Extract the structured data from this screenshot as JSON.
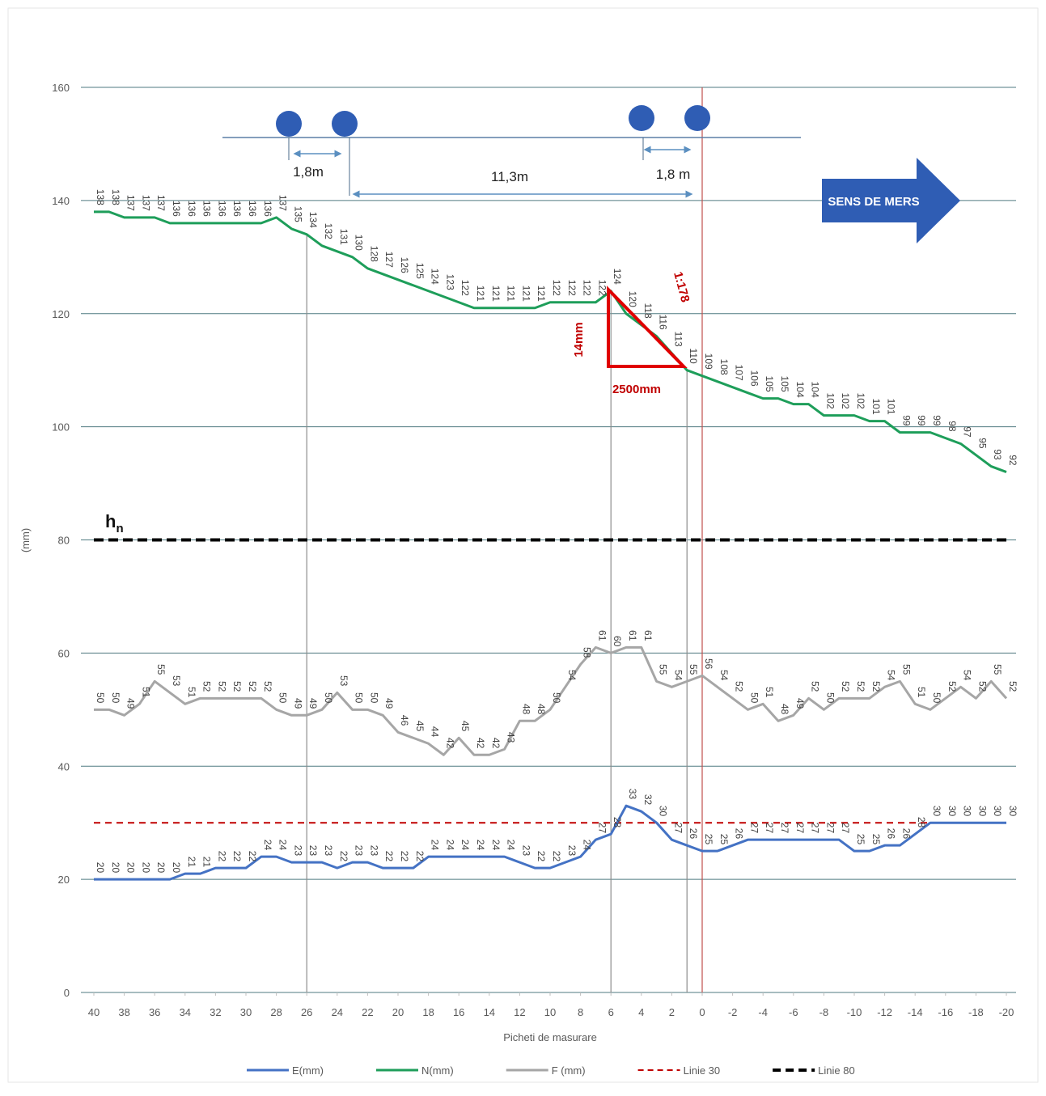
{
  "chart_data": {
    "type": "line",
    "y_label": "(mm)",
    "x_label": "Picheti de masurare",
    "x": [
      40,
      39,
      38,
      37,
      36,
      35,
      34,
      33,
      32,
      31,
      30,
      29,
      28,
      27,
      26,
      25,
      24,
      23,
      22,
      21,
      20,
      19,
      18,
      17,
      16,
      15,
      14,
      13,
      12,
      11,
      10,
      9,
      8,
      7,
      6,
      5,
      4,
      3,
      2,
      1,
      0,
      -1,
      -2,
      -3,
      -4,
      -5,
      -6,
      -7,
      -8,
      -9,
      -10,
      -11,
      -12,
      -13,
      -14,
      -15,
      -16,
      -17,
      -18,
      -19,
      -20
    ],
    "xlim": [
      40,
      -20
    ],
    "xticks": [
      40,
      38,
      36,
      34,
      32,
      30,
      28,
      26,
      24,
      22,
      20,
      18,
      16,
      14,
      12,
      10,
      8,
      6,
      4,
      2,
      0,
      -2,
      -4,
      -6,
      -8,
      -10,
      -12,
      -14,
      -16,
      -18,
      -20
    ],
    "ylim": [
      0,
      160
    ],
    "yticks": [
      0,
      20,
      40,
      60,
      80,
      100,
      120,
      140,
      160
    ],
    "grid": true,
    "series": [
      {
        "name": "E(mm)",
        "color": "#4472c4",
        "values": [
          20,
          20,
          20,
          20,
          20,
          20,
          21,
          21,
          22,
          22,
          22,
          24,
          24,
          23,
          23,
          23,
          22,
          23,
          23,
          22,
          22,
          22,
          24,
          24,
          24,
          24,
          24,
          24,
          23,
          22,
          22,
          23,
          24,
          27,
          28,
          33,
          32,
          30,
          27,
          26,
          25,
          25,
          26,
          27,
          27,
          27,
          27,
          27,
          27,
          27,
          25,
          25,
          26,
          26,
          28,
          30,
          30,
          30,
          30,
          30,
          30
        ]
      },
      {
        "name": "N(mm)",
        "color": "#1e9e5a",
        "values": [
          138,
          138,
          137,
          137,
          137,
          136,
          136,
          136,
          136,
          136,
          136,
          136,
          137,
          135,
          134,
          132,
          131,
          130,
          128,
          127,
          126,
          125,
          124,
          123,
          122,
          121,
          121,
          121,
          121,
          121,
          122,
          122,
          122,
          122,
          124,
          120,
          118,
          116,
          113,
          110,
          109,
          108,
          107,
          106,
          105,
          105,
          104,
          104,
          102,
          102,
          102,
          101,
          101,
          99,
          99,
          99,
          98,
          97,
          95,
          93,
          92
        ]
      },
      {
        "name": "F (mm)",
        "color": "#a6a6a6",
        "values": [
          50,
          50,
          49,
          51,
          55,
          53,
          51,
          52,
          52,
          52,
          52,
          52,
          50,
          49,
          49,
          50,
          53,
          50,
          50,
          49,
          46,
          45,
          44,
          42,
          45,
          42,
          42,
          43,
          48,
          48,
          50,
          54,
          58,
          61,
          60,
          61,
          61,
          55,
          54,
          55,
          56,
          54,
          52,
          50,
          51,
          48,
          49,
          52,
          50,
          52,
          52,
          52,
          54,
          55,
          51,
          50,
          52,
          54,
          52,
          55,
          52
        ]
      }
    ],
    "reference_lines": [
      {
        "name": "Linie 30",
        "value": 30,
        "color": "#c00000"
      },
      {
        "name": "Linie 80",
        "value": 80,
        "color": "#000000"
      }
    ],
    "vlines": [
      {
        "x": 26,
        "color": "#8c8c8c"
      },
      {
        "x": 6,
        "color": "#8c8c8c"
      },
      {
        "x": 1,
        "color": "#8c8c8c"
      },
      {
        "x": 0,
        "color": "#c0504d"
      }
    ],
    "annotations": {
      "dist_1": "1,8m",
      "dist_2": "11,3m",
      "dist_3": "1,8 m",
      "direction": "SENS DE MERS",
      "height": "14mm",
      "length": "2500mm",
      "slope": "1:178",
      "h_main": "h",
      "h_sub": "n"
    }
  }
}
